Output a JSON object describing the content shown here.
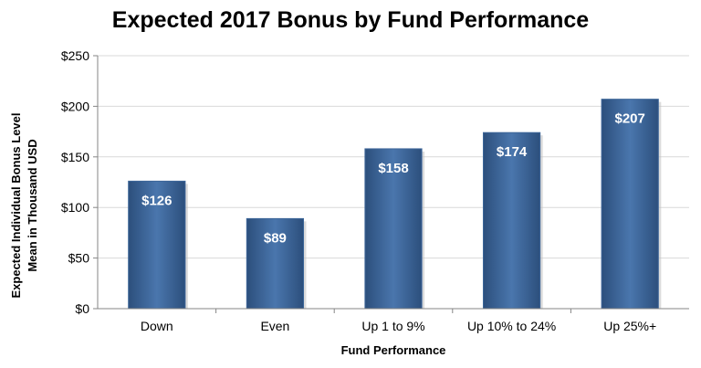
{
  "chart_data": {
    "type": "bar",
    "title": "Expected 2017 Bonus by Fund Performance",
    "xlabel": "Fund Performance",
    "ylabel_lines": [
      "Expected Individual Bonus Level",
      "Mean in Thousand USD"
    ],
    "categories": [
      "Down",
      "Even",
      "Up 1 to 9%",
      "Up 10% to 24%",
      "Up 25%+"
    ],
    "values": [
      126,
      89,
      158,
      174,
      207
    ],
    "data_labels": [
      "$126",
      "$89",
      "$158",
      "$174",
      "$207"
    ],
    "ylim": [
      0,
      250
    ],
    "yticks": [
      0,
      50,
      100,
      150,
      200,
      250
    ],
    "ytick_labels": [
      "$0",
      "$50",
      "$100",
      "$150",
      "$200",
      "$250"
    ],
    "grid": true,
    "legend": "none",
    "bar_color": "#3d6699"
  }
}
